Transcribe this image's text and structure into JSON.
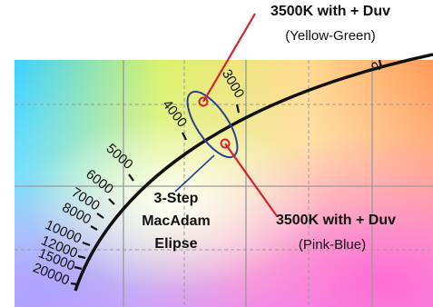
{
  "callouts": {
    "top": {
      "title": "3500K with + Duv",
      "subtitle": "(Yellow-Green)"
    },
    "bottom": {
      "title": "3500K with + Duv",
      "subtitle": "(Pink-Blue)"
    },
    "ellipse": {
      "line1": "3-Step",
      "line2": "MacAdam",
      "line3": "Elipse"
    }
  },
  "locus_ticks": [
    "20000",
    "15000",
    "12000",
    "10000",
    "8000",
    "7000",
    "6000",
    "5000",
    "4000",
    "3000",
    "2"
  ],
  "colors": {
    "locus": "#111111",
    "callout_line_red": "#d4232a",
    "ellipse_blue": "#2e3f8f",
    "grid": "#9a9a9a"
  }
}
